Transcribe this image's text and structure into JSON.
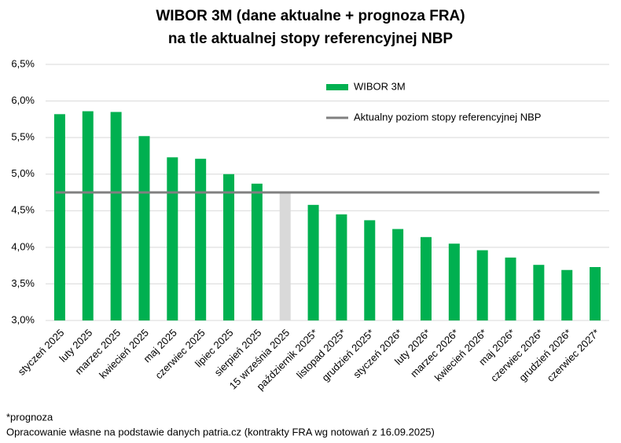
{
  "chart_data": {
    "type": "bar",
    "title": [
      "WIBOR 3M (dane aktualne + prognoza FRA)",
      "na tle aktualnej stopy referencyjnej NBP"
    ],
    "categories": [
      "styczeń 2025",
      "luty 2025",
      "marzec 2025",
      "kwiecień 2025",
      "maj 2025",
      "czerwiec 2025",
      "lipiec 2025",
      "sierpień 2025",
      "15 września 2025",
      "październik 2025*",
      "listopad 2025*",
      "grudzień 2025*",
      "styczeń 2026*",
      "luty 2026*",
      "marzec 2026*",
      "kwiecień 2026*",
      "maj 2026*",
      "czerwiec 2026*",
      "grudzień 2026*",
      "czerwiec 2027*"
    ],
    "series": [
      {
        "name": "WIBOR 3M",
        "type": "bar",
        "color": "#00b050",
        "values": [
          5.82,
          5.86,
          5.85,
          5.52,
          5.23,
          5.21,
          5.0,
          4.87,
          4.75,
          4.58,
          4.45,
          4.37,
          4.25,
          4.14,
          4.05,
          3.96,
          3.86,
          3.76,
          3.69,
          3.73
        ],
        "colors": [
          "#00b050",
          "#00b050",
          "#00b050",
          "#00b050",
          "#00b050",
          "#00b050",
          "#00b050",
          "#00b050",
          "#d9d9d9",
          "#00b050",
          "#00b050",
          "#00b050",
          "#00b050",
          "#00b050",
          "#00b050",
          "#00b050",
          "#00b050",
          "#00b050",
          "#00b050",
          "#00b050"
        ]
      },
      {
        "name": "Aktualny poziom stopy referencyjnej NBP",
        "type": "line",
        "color": "#808080",
        "value": 4.75
      }
    ],
    "ylim": [
      3.0,
      6.5
    ],
    "yticks": [
      {
        "value": 3.0,
        "label": "3,0%"
      },
      {
        "value": 3.5,
        "label": "3,5%"
      },
      {
        "value": 4.0,
        "label": "4,0%"
      },
      {
        "value": 4.5,
        "label": "4,5%"
      },
      {
        "value": 5.0,
        "label": "5,0%"
      },
      {
        "value": 5.5,
        "label": "5,5%"
      },
      {
        "value": 6.0,
        "label": "6,0%"
      },
      {
        "value": 6.5,
        "label": "6,5%"
      }
    ],
    "grid": true,
    "legend": "top-right",
    "notes": [
      "*prognoza",
      "Opracowanie własne na podstawie danych patria.cz (kontrakty FRA wg notowań z 16.09.2025)"
    ]
  }
}
